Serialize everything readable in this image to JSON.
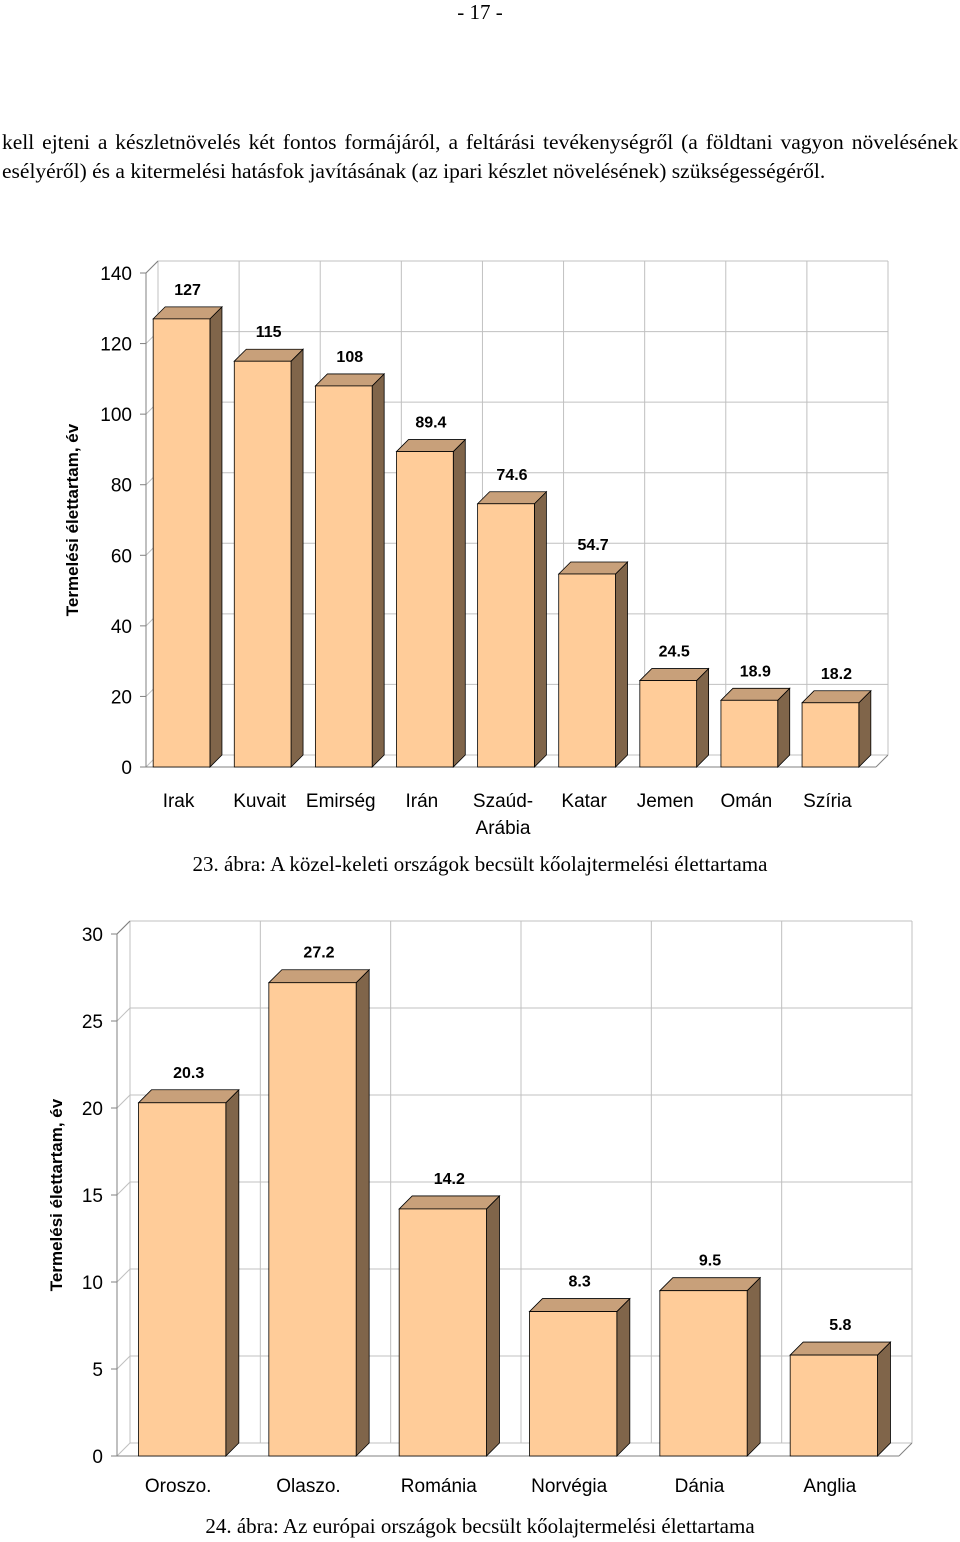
{
  "page": {
    "number": "- 17 -",
    "paragraph": "kell ejteni a készletnövelés két fontos formájáról, a feltárási tevékenységről (a földtani vagyon növelésének esélyéről) és a kitermelési hatásfok javításának (az ipari készlet növelésének) szükségességéről."
  },
  "figures": [
    {
      "caption": "23. ábra: A közel-keleti országok becsült kőolajtermelési élettartama"
    },
    {
      "caption": "24. ábra: Az európai országok becsült kőolajtermelési élettartama"
    }
  ],
  "colors": {
    "bar_front": "#ffcc99",
    "bar_side": "#80654a",
    "bar_top": "#c8a07a",
    "grid": "#c0c0c0",
    "axis": "#808080"
  },
  "chart_data": [
    {
      "type": "bar",
      "categories": [
        "Irak",
        "Kuvait",
        "Emirség",
        "Irán",
        "Szaúd-Arábia",
        "Katar",
        "Jemen",
        "Omán",
        "Szíria"
      ],
      "values": [
        127,
        115,
        108,
        89.4,
        74.6,
        54.7,
        24.5,
        18.9,
        18.2
      ],
      "value_labels": [
        "127",
        "115",
        "108",
        "89.4",
        "74.6",
        "54.7",
        "24.5",
        "18.9",
        "18.2"
      ],
      "ylabel": "Termelési élettartam, év",
      "xlabel": "",
      "ylim": [
        0,
        140
      ],
      "yticks": [
        0,
        20,
        40,
        60,
        80,
        100,
        120,
        140
      ],
      "grid": true,
      "style": "3d"
    },
    {
      "type": "bar",
      "categories": [
        "Oroszo.",
        "Olaszo.",
        "Románia",
        "Norvégia",
        "Dánia",
        "Anglia"
      ],
      "values": [
        20.3,
        27.2,
        14.2,
        8.3,
        9.5,
        5.8
      ],
      "value_labels": [
        "20.3",
        "27.2",
        "14.2",
        "8.3",
        "9.5",
        "5.8"
      ],
      "ylabel": "Termelési élettartam, év",
      "xlabel": "",
      "ylim": [
        0,
        30
      ],
      "yticks": [
        0,
        5,
        10,
        15,
        20,
        25,
        30
      ],
      "grid": true,
      "style": "3d"
    }
  ]
}
